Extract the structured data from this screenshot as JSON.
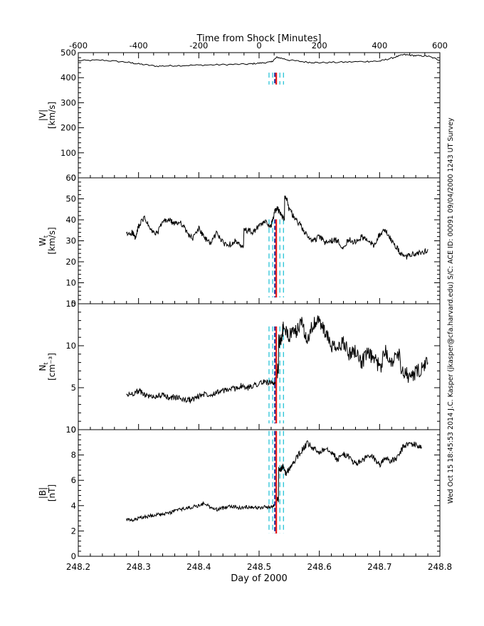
{
  "chart_data": {
    "type": "line",
    "top_axis": {
      "label": "Time from Shock [Minutes]",
      "range": [
        -600,
        600
      ],
      "ticks": [
        -600,
        -400,
        -200,
        0,
        200,
        400,
        600
      ],
      "tick_labels": [
        "-600",
        "-400",
        "-200",
        "0",
        "200",
        "400",
        "600"
      ]
    },
    "bottom_axis": {
      "label": "Day of 2000",
      "range": [
        248.2,
        248.8
      ],
      "ticks": [
        248.2,
        248.3,
        248.4,
        248.5,
        248.6,
        248.7,
        248.8
      ],
      "tick_labels": [
        "248.2",
        "248.3",
        "248.4",
        "248.5",
        "248.6",
        "248.7",
        "248.8"
      ]
    },
    "side_text": [
      "Wed Oct 15 18:45:53 2014",
      "J.C. Kasper (jkasper@cfa.harvard.edu)",
      "S/C: ACE ID: 00091 09/04/2000",
      "1243 UT Survey"
    ],
    "marker_lines": {
      "red_x": 248.5285,
      "blue_x": 248.5262,
      "cyan_dashed_x": [
        248.5165,
        248.5225,
        248.5345,
        248.5405
      ],
      "colors": {
        "red": "#e41a1c",
        "blue": "#1f2f9e",
        "cyan": "#17bfd4",
        "trace": "#000000"
      }
    },
    "panels": [
      {
        "id": "speed",
        "ylabel_line1": "|V|",
        "ylabel_line2": "[km/s]",
        "ylim": [
          0,
          500
        ],
        "yticks": [
          0,
          100,
          200,
          300,
          400,
          500
        ],
        "ytick_labels": [
          "0",
          "100",
          "200",
          "300",
          "400",
          "500"
        ],
        "top_axis_ticks": true,
        "series": [
          {
            "x": [
              248.2,
              248.24,
              248.28,
              248.3,
              248.33,
              248.36,
              248.4,
              248.44,
              248.48,
              248.5,
              248.52,
              248.53,
              248.55,
              248.58,
              248.6,
              248.64,
              248.68,
              248.7,
              248.72,
              248.74,
              248.76,
              248.78,
              248.8
            ],
            "y": [
              468,
              470,
              462,
              455,
              446,
              448,
              450,
              452,
              454,
              458,
              462,
              482,
              470,
              462,
              460,
              462,
              465,
              466,
              478,
              492,
              488,
              486,
              470
            ]
          }
        ],
        "dashed_span": [
          0.745,
          0.84
        ]
      },
      {
        "id": "thermal",
        "ylabel_line1": "W",
        "ylabel_sub": "t",
        "ylabel_line2": "[km/s]",
        "ylim": [
          0,
          60
        ],
        "yticks": [
          0,
          10,
          20,
          30,
          40,
          50,
          60
        ],
        "ytick_labels": [
          "0",
          "10",
          "20",
          "30",
          "40",
          "50",
          "60"
        ],
        "series": [
          {
            "x": [
              248.28,
              248.29,
              248.295,
              248.3,
              248.31,
              248.32,
              248.33,
              248.34,
              248.35,
              248.36,
              248.37,
              248.38,
              248.39,
              248.4,
              248.41,
              248.42,
              248.43,
              248.44,
              248.45,
              248.46,
              248.47,
              248.48,
              248.49,
              248.5,
              248.51,
              248.52,
              248.525,
              248.53,
              248.535,
              248.54,
              248.545,
              248.55,
              248.56,
              248.57,
              248.58,
              248.59,
              248.6,
              248.61,
              248.62,
              248.63,
              248.64,
              248.65,
              248.66,
              248.67,
              248.68,
              248.69,
              248.7,
              248.71,
              248.72,
              248.73,
              248.74,
              248.75,
              248.76,
              248.77,
              248.78
            ],
            "y": [
              33,
              34,
              31,
              37,
              41,
              35,
              33,
              39,
              40,
              38,
              39,
              34,
              31,
              36,
              31,
              29,
              34,
              29,
              28,
              30,
              27,
              35,
              34,
              37,
              39,
              37,
              43,
              46,
              43,
              41,
              51,
              45,
              40,
              37,
              32,
              30,
              32,
              29,
              30,
              30,
              27,
              31,
              29,
              32,
              30,
              28,
              33,
              35,
              30,
              26,
              22,
              23,
              24,
              24,
              26
            ]
          }
        ],
        "dashed_span": [
          0.05,
          0.67
        ]
      },
      {
        "id": "density",
        "ylabel_line1": "N",
        "ylabel_sub": "t",
        "ylabel_line2": "[cm⁻³]",
        "ylim": [
          0,
          15
        ],
        "yticks": [
          0,
          5,
          10,
          15
        ],
        "ytick_labels": [
          "0",
          "5",
          "10",
          "15"
        ],
        "series": [
          {
            "x": [
              248.28,
              248.29,
              248.3,
              248.31,
              248.32,
              248.33,
              248.34,
              248.35,
              248.36,
              248.37,
              248.38,
              248.39,
              248.4,
              248.41,
              248.42,
              248.43,
              248.44,
              248.45,
              248.46,
              248.47,
              248.48,
              248.49,
              248.5,
              248.51,
              248.52,
              248.525,
              248.53,
              248.535,
              248.54,
              248.55,
              248.56,
              248.57,
              248.58,
              248.59,
              248.6,
              248.61,
              248.62,
              248.63,
              248.64,
              248.65,
              248.66,
              248.67,
              248.68,
              248.69,
              248.7,
              248.71,
              248.72,
              248.73,
              248.74,
              248.75,
              248.76,
              248.77,
              248.78
            ],
            "y": [
              4.1,
              4.3,
              4.6,
              4.2,
              3.9,
              4.0,
              4.1,
              3.8,
              3.9,
              3.7,
              3.5,
              3.6,
              4.0,
              4.3,
              4.2,
              4.5,
              4.6,
              4.8,
              4.9,
              5.2,
              4.9,
              5.3,
              5.5,
              5.7,
              5.6,
              5.2,
              7.0,
              10.5,
              12.0,
              11.2,
              11.5,
              12.8,
              11.0,
              12.5,
              13.0,
              11.5,
              10.0,
              9.5,
              10.5,
              9.0,
              9.5,
              8.0,
              9.0,
              8.5,
              7.5,
              9.5,
              8.0,
              9.0,
              7.0,
              6.2,
              6.8,
              7.2,
              8.0
            ]
          }
        ],
        "dashed_span": [
          0.05,
          0.82
        ]
      },
      {
        "id": "field",
        "ylabel_line1": "|B|",
        "ylabel_line2": "[nT]",
        "ylim": [
          0,
          10
        ],
        "yticks": [
          0,
          2,
          4,
          6,
          8,
          10
        ],
        "ytick_labels": [
          "0",
          "2",
          "4",
          "6",
          "8",
          "10"
        ],
        "series": [
          {
            "x": [
              248.28,
              248.29,
              248.3,
              248.31,
              248.32,
              248.33,
              248.34,
              248.35,
              248.36,
              248.37,
              248.38,
              248.39,
              248.4,
              248.41,
              248.42,
              248.43,
              248.44,
              248.45,
              248.46,
              248.47,
              248.48,
              248.49,
              248.5,
              248.51,
              248.52,
              248.525,
              248.53,
              248.535,
              248.54,
              248.545,
              248.55,
              248.56,
              248.57,
              248.58,
              248.59,
              248.6,
              248.61,
              248.62,
              248.63,
              248.64,
              248.65,
              248.66,
              248.67,
              248.68,
              248.69,
              248.7,
              248.71,
              248.72,
              248.73,
              248.74,
              248.75,
              248.76,
              248.77
            ],
            "y": [
              2.9,
              2.8,
              3.0,
              3.1,
              3.2,
              3.3,
              3.3,
              3.4,
              3.6,
              3.7,
              3.8,
              3.9,
              4.0,
              4.2,
              3.8,
              3.7,
              3.8,
              4.0,
              3.9,
              3.8,
              3.9,
              3.9,
              3.8,
              3.9,
              3.9,
              4.0,
              4.5,
              6.8,
              7.1,
              6.5,
              6.9,
              7.6,
              8.3,
              8.9,
              8.5,
              8.2,
              8.6,
              8.3,
              7.6,
              8.1,
              7.8,
              7.3,
              7.5,
              7.9,
              7.8,
              7.2,
              7.8,
              7.5,
              7.8,
              8.7,
              8.9,
              8.8,
              8.6
            ]
          }
        ],
        "dashed_span": [
          0.18,
          0.99
        ]
      }
    ]
  }
}
